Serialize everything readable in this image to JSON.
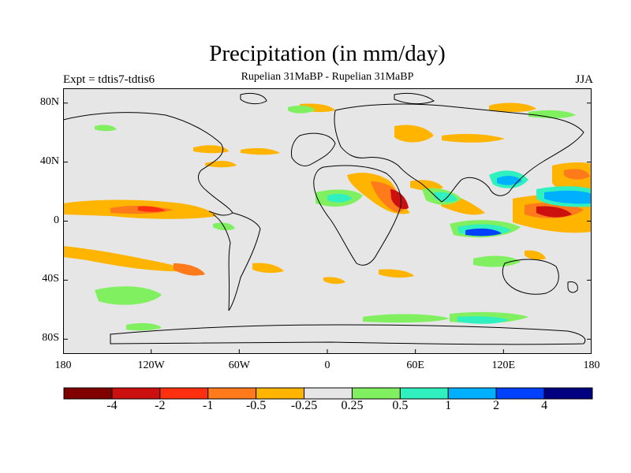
{
  "title": "Precipitation (in mm/day)",
  "subtitle": "Rupelian  31MaBP - Rupelian  31MaBP",
  "experiment": "Expt = tdtis7-tdtis6",
  "season": "JJA",
  "map": {
    "projection": "cylindrical equidistant",
    "lat_range": [
      -90,
      90
    ],
    "lon_range": [
      -180,
      180
    ],
    "y_ticks": [
      {
        "value": 80,
        "label": "80N"
      },
      {
        "value": 40,
        "label": "40N"
      },
      {
        "value": 0,
        "label": "0"
      },
      {
        "value": -40,
        "label": "40S"
      },
      {
        "value": -80,
        "label": "80S"
      }
    ],
    "x_ticks": [
      {
        "value": -180,
        "label": "180"
      },
      {
        "value": -120,
        "label": "120W"
      },
      {
        "value": -60,
        "label": "60W"
      },
      {
        "value": 0,
        "label": "0"
      },
      {
        "value": 60,
        "label": "60E"
      },
      {
        "value": 120,
        "label": "120E"
      },
      {
        "value": 180,
        "label": "180"
      }
    ],
    "background_color": "#e6e6e6"
  },
  "colorbar": {
    "colors": [
      "#800000",
      "#cc1010",
      "#ff3010",
      "#ff7a1a",
      "#ffb400",
      "#e6e6e6",
      "#80f060",
      "#30f0c0",
      "#00b0ff",
      "#0040ff",
      "#000080"
    ],
    "labels": [
      "-4",
      "-2",
      "-1",
      "-0.5",
      "-0.25",
      "0.25",
      "0.5",
      "1",
      "2",
      "4"
    ]
  }
}
